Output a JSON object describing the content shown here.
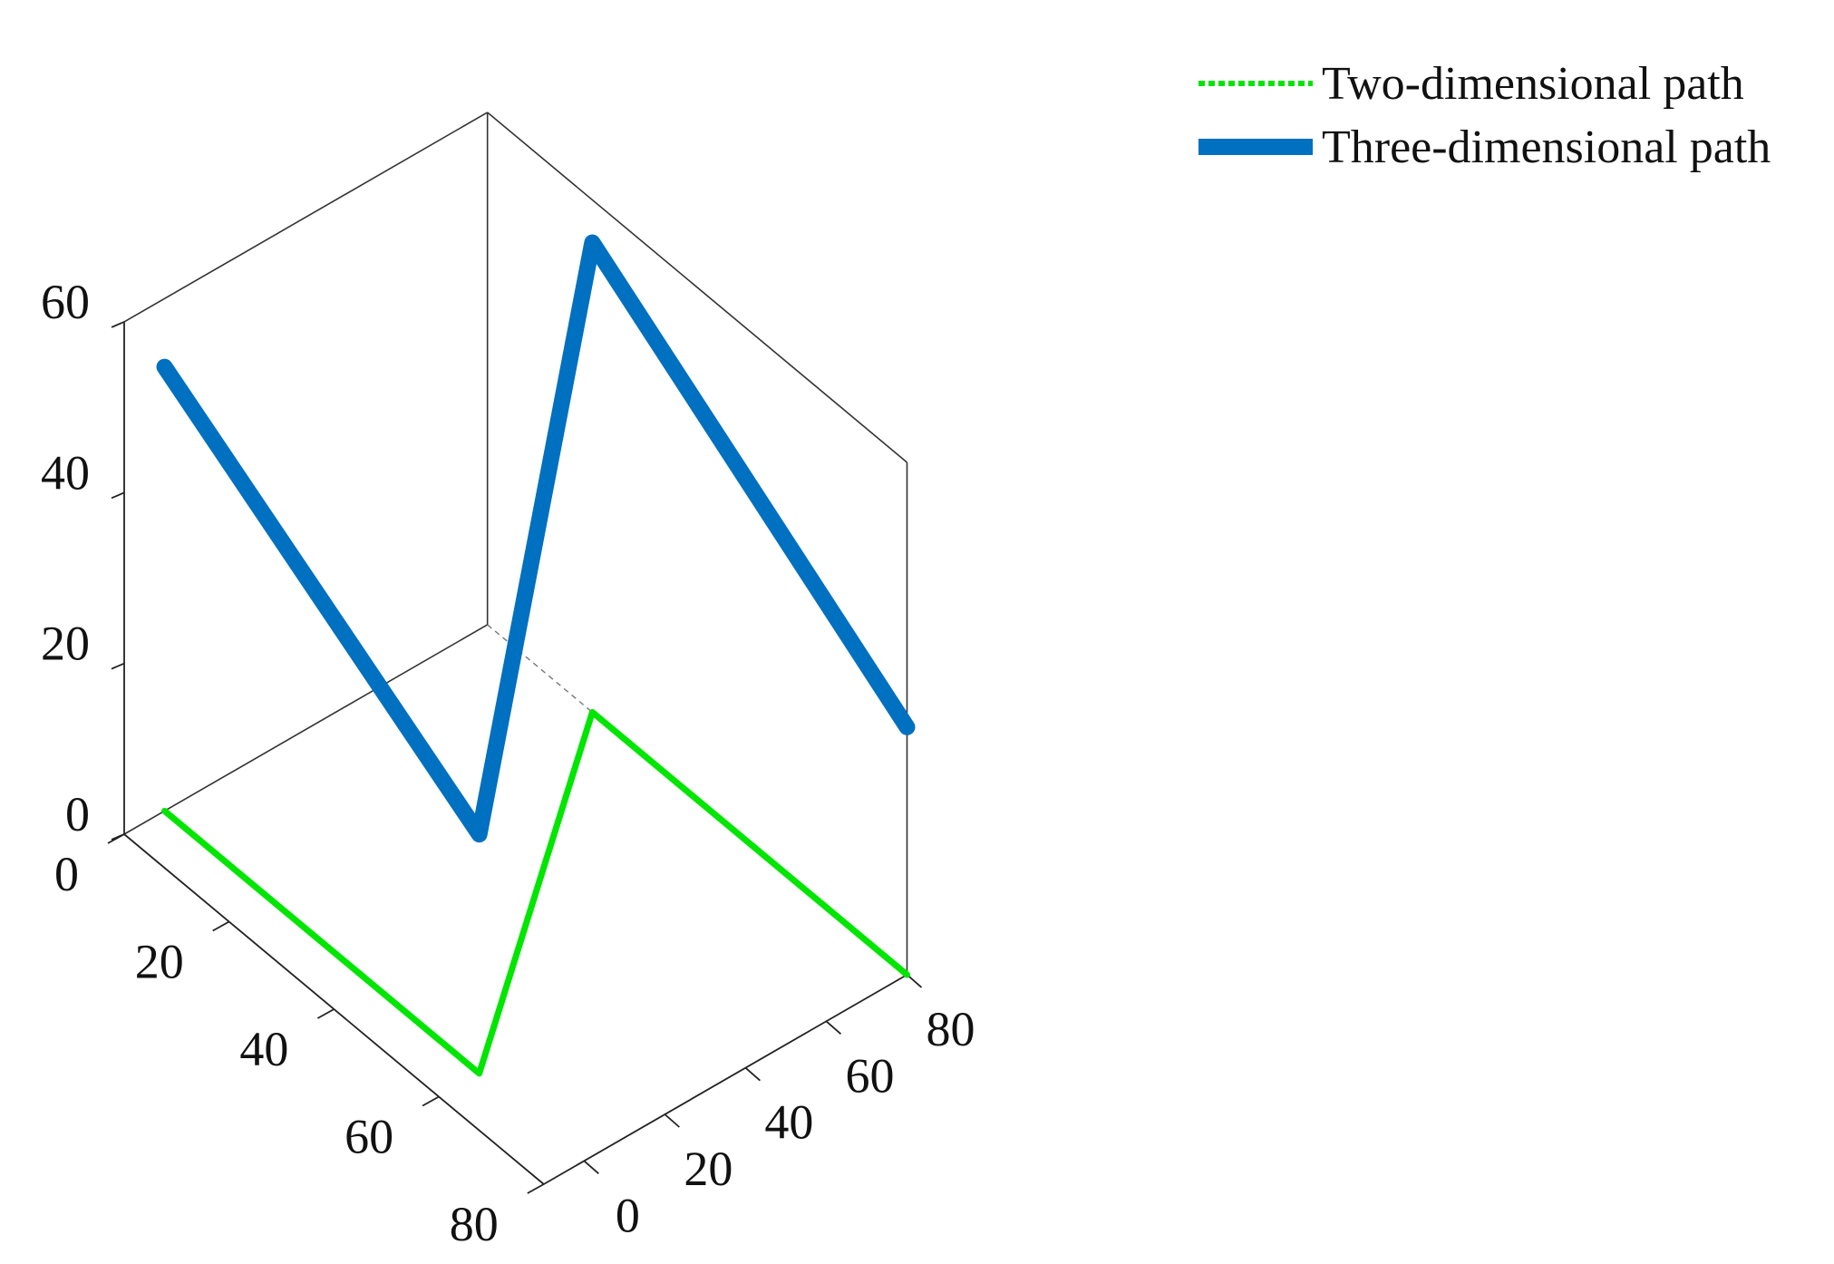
{
  "chart_data": {
    "type": "line",
    "title": "",
    "xlabel": "",
    "ylabel": "",
    "zlabel": "",
    "xlim": [
      -10,
      80
    ],
    "ylim": [
      0,
      80
    ],
    "zlim": [
      0,
      60
    ],
    "x_ticks": [
      0,
      20,
      40,
      60,
      80
    ],
    "y_ticks": [
      0,
      20,
      40,
      60,
      80
    ],
    "z_ticks": [
      0,
      20,
      40,
      60
    ],
    "grid": false,
    "legend_position": "top-right",
    "series": [
      {
        "name": "Two-dimensional path",
        "color": "#00e600",
        "style": "dotted",
        "points": [
          {
            "x": 0,
            "y": 0,
            "z": 0
          },
          {
            "x": 0,
            "y": 60,
            "z": 0
          },
          {
            "x": 80,
            "y": 20,
            "z": 0
          },
          {
            "x": 80,
            "y": 80,
            "z": 0
          }
        ]
      },
      {
        "name": "Three-dimensional path",
        "color": "#0070c0",
        "style": "solid",
        "points": [
          {
            "x": 0,
            "y": 0,
            "z": 52
          },
          {
            "x": 0,
            "y": 60,
            "z": 28
          },
          {
            "x": 80,
            "y": 20,
            "z": 55
          },
          {
            "x": 80,
            "y": 80,
            "z": 29
          }
        ]
      }
    ]
  }
}
